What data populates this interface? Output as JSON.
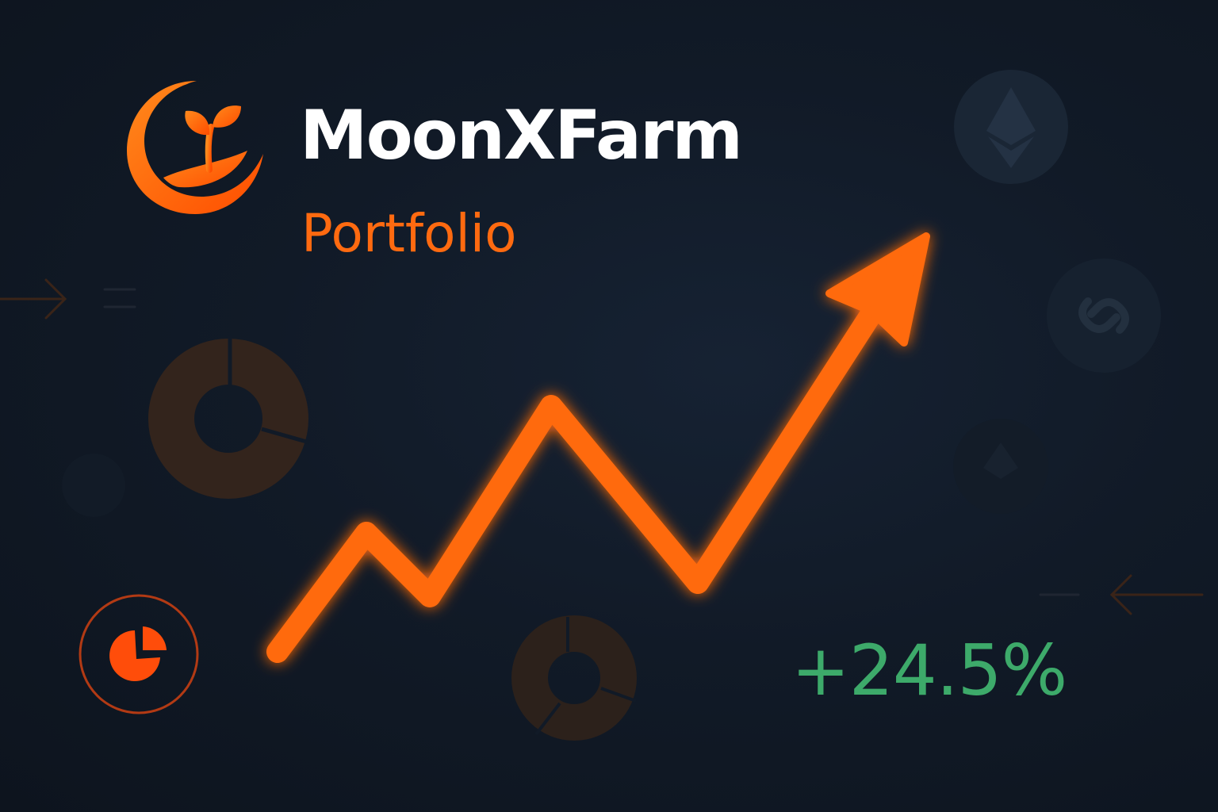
{
  "brand": {
    "name": "MoonXFarm",
    "subtitle": "Portfolio",
    "logo_icon": "moon-sprout-logo-icon"
  },
  "performance": {
    "change_label": "+24.5%",
    "trend_icon": "rising-trend-arrow-icon"
  },
  "colors": {
    "background": "#111a27",
    "accent_orange": "#ff6a10",
    "positive_green": "#3daa6a",
    "title_white": "#ffffff"
  },
  "decorations": [
    "ethereum-coin-icon",
    "chainlink-coin-icon",
    "ethereum-faint-icon",
    "donut-chart-icon",
    "donut-chart-small-icon",
    "pie-chart-badge-icon",
    "arrow-right-faint-icon",
    "arrow-left-faint-icon"
  ]
}
